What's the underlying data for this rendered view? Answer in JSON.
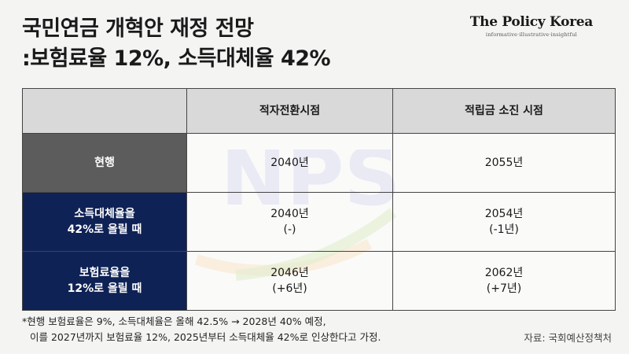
{
  "title": {
    "line1": "국민연금 개혁안 재정 전망",
    "line2": ":보험료율 12%, 소득대체율 42%"
  },
  "brand": {
    "name": "The Policy Korea",
    "tagline": "informative·illustrative·insightful"
  },
  "watermark": {
    "text": "NPS"
  },
  "table": {
    "headers": [
      "",
      "적자전환시점",
      "적립금 소진 시점"
    ],
    "rows": [
      {
        "label": [
          "현행"
        ],
        "deficit": [
          "2040년"
        ],
        "depletion": [
          "2055년"
        ],
        "label_color": "#5c5c5c"
      },
      {
        "label": [
          "소득대체율을",
          "42%로 올릴 때"
        ],
        "deficit": [
          "2040년",
          "(-)"
        ],
        "depletion": [
          "2054년",
          "(-1년)"
        ],
        "label_color": "#0f2255"
      },
      {
        "label": [
          "보험료율을",
          "12%로 올릴 때"
        ],
        "deficit": [
          "2046년",
          "(+6년)"
        ],
        "depletion": [
          "2062년",
          "(+7년)"
        ],
        "label_color": "#0f2255"
      }
    ]
  },
  "note": {
    "line1": "*현행 보험료율은 9%, 소득대체율은 올해 42.5% → 2028년 40% 예정,",
    "line2": "이를 2027년까지 보험료율 12%, 2025년부터 소득대체율 42%로 인상한다고 가정."
  },
  "source": "자료: 국회예산정책처"
}
